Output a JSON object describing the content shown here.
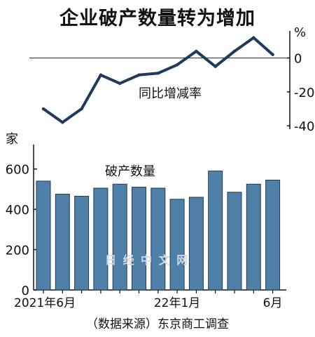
{
  "title": "企业破产数量转为增加",
  "source": "（数据来源）东京商工调查",
  "watermark": "日 经 中 文 网",
  "colors": {
    "bar": "#4e80a8",
    "bar_edge": "#243a52",
    "line": "#1f3a5c",
    "axis": "#111111"
  },
  "chart_data": [
    {
      "type": "line",
      "title": "同比增减率",
      "y_unit": "%",
      "ylim": [
        -42,
        16
      ],
      "yticks": [
        0,
        -20,
        -40
      ],
      "ytick_labels": [
        "0",
        "-20",
        "-40"
      ],
      "grid": false,
      "series": [
        {
          "values": [
            -30,
            -38,
            -30,
            -10,
            -15,
            -10,
            -9,
            -4,
            4,
            -5,
            4,
            12,
            2
          ]
        }
      ]
    },
    {
      "type": "bar",
      "title": "破产数量",
      "y_unit": "家",
      "ylim": [
        0,
        700
      ],
      "yticks": [
        0,
        200,
        400,
        600
      ],
      "ytick_labels": [
        "0",
        "200",
        "400",
        "600"
      ],
      "categories": [
        "2021年6月",
        "",
        "",
        "",
        "",
        "",
        "",
        "22年1月",
        "",
        "",
        "",
        "",
        "6月"
      ],
      "values": [
        540,
        475,
        465,
        505,
        525,
        510,
        505,
        450,
        460,
        590,
        485,
        525,
        545
      ],
      "grid": false
    }
  ]
}
